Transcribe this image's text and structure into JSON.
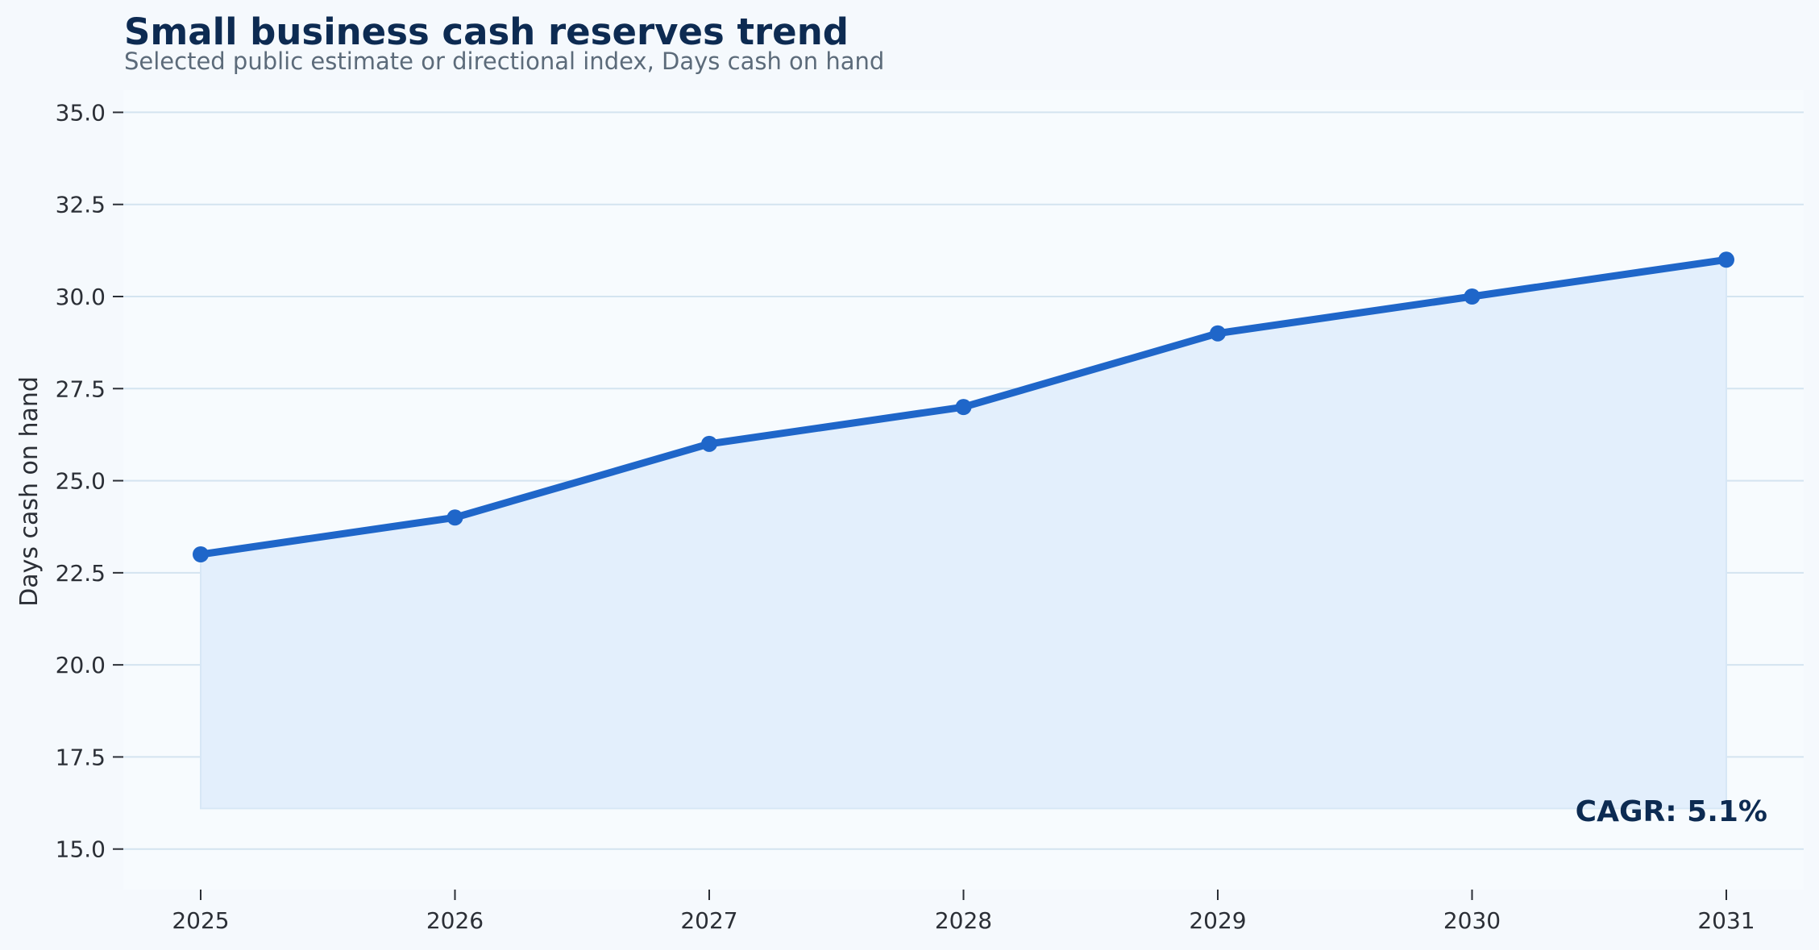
{
  "chart_data": {
    "type": "area",
    "title": "Small business cash reserves trend",
    "subtitle": "Selected public estimate or directional index, Days cash on hand",
    "xlabel": "",
    "ylabel": "Days cash on hand",
    "x": [
      "2025",
      "2026",
      "2027",
      "2028",
      "2029",
      "2030",
      "2031"
    ],
    "series": [
      {
        "values": [
          23,
          24,
          26,
          27,
          29,
          30,
          31
        ]
      }
    ],
    "fill_baseline": 16.1,
    "ylim": [
      13.9,
      35.6
    ],
    "yticks": [
      15.0,
      17.5,
      20.0,
      22.5,
      25.0,
      27.5,
      30.0,
      32.5,
      35.0
    ],
    "ytick_labels": [
      "15.0",
      "17.5",
      "20.0",
      "22.5",
      "25.0",
      "27.5",
      "30.0",
      "32.5",
      "35.0"
    ],
    "grid": "horizontal",
    "annotation": "CAGR: 5.1%",
    "annotation_placement": "bottom-right",
    "colors": {
      "line": "#1f66c9",
      "fill": "#e3effc",
      "grid": "#d4e4f0",
      "plot_background": "#f7fbfe",
      "page_background": "#f5f9fd"
    }
  }
}
